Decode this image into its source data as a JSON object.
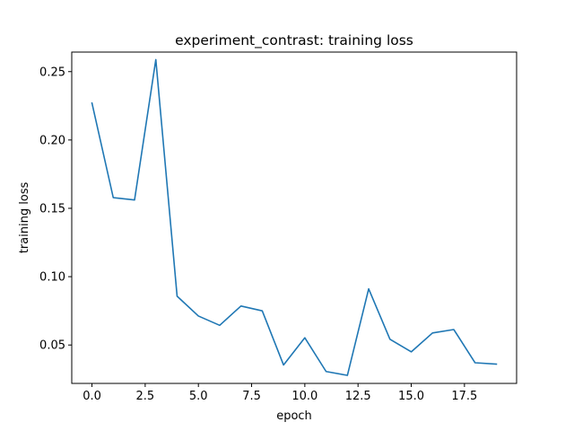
{
  "chart_data": {
    "type": "line",
    "title": "experiment_contrast: training loss",
    "xlabel": "epoch",
    "ylabel": "training loss",
    "xlim": [
      -0.95,
      19.95
    ],
    "ylim": [
      0.0219,
      0.2643
    ],
    "x_ticks": [
      0.0,
      2.5,
      5.0,
      7.5,
      10.0,
      12.5,
      15.0,
      17.5
    ],
    "x_tick_labels": [
      "0.0",
      "2.5",
      "5.0",
      "7.5",
      "10.0",
      "12.5",
      "15.0",
      "17.5"
    ],
    "y_ticks": [
      0.05,
      0.1,
      0.15,
      0.2,
      0.25
    ],
    "y_tick_labels": [
      "0.05",
      "0.10",
      "0.15",
      "0.20",
      "0.25"
    ],
    "grid": false,
    "line_color": "#1f77b4",
    "series": [
      {
        "x": [
          0,
          1,
          2,
          3,
          4,
          5,
          6,
          7,
          8,
          9,
          10,
          11,
          12,
          13,
          14,
          15,
          16,
          17,
          18,
          19
        ],
        "values": [
          0.227,
          0.1578,
          0.1561,
          0.2588,
          0.0857,
          0.0712,
          0.0644,
          0.0785,
          0.075,
          0.0354,
          0.0553,
          0.0306,
          0.0278,
          0.0911,
          0.0542,
          0.045,
          0.0588,
          0.0613,
          0.037,
          0.036
        ]
      }
    ]
  }
}
